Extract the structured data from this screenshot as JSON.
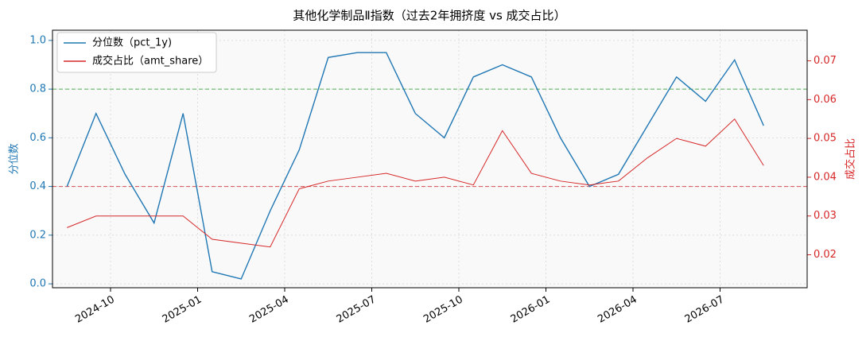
{
  "chart_data": {
    "type": "line",
    "title": "其他化学制品Ⅱ指数（过去2年拥挤度 vs 成交占比）",
    "ylabel": "分位数",
    "y2label": "成交占比",
    "x": [
      "2024-08",
      "2024-09",
      "2024-10",
      "2024-11",
      "2024-12",
      "2025-01",
      "2025-02",
      "2025-03",
      "2025-04",
      "2025-05",
      "2025-06",
      "2025-07",
      "2025-08",
      "2025-09",
      "2025-10",
      "2025-11",
      "2025-12",
      "2026-01",
      "2026-02",
      "2026-03",
      "2026-04",
      "2026-05",
      "2026-06",
      "2026-07",
      "2026-08"
    ],
    "xlim": [
      "2024-08",
      "2026-10"
    ],
    "xticks": [
      "2024-10",
      "2025-01",
      "2025-04",
      "2025-07",
      "2025-10",
      "2026-01",
      "2026-04",
      "2026-07"
    ],
    "ylim": [
      -0.016,
      1.042
    ],
    "yticks": [
      {
        "value": 0,
        "label": "0.0"
      },
      0.2,
      0.4,
      0.6,
      0.8,
      {
        "value": 1,
        "label": "1.0"
      }
    ],
    "y2lim": [
      0.0115,
      0.0779
    ],
    "y2ticks": [
      0.02,
      0.03,
      0.04,
      0.05,
      0.06,
      0.07
    ],
    "grid": true,
    "legend": "upper left",
    "hlines": [
      {
        "value": 0.8,
        "color": "#2ca02c"
      },
      {
        "value": 0.4,
        "color": "#d62728"
      }
    ],
    "series": [
      {
        "name": "分位数（pct_1y)",
        "color": "#1f77b4",
        "axis": "y",
        "values": [
          0.4,
          0.7,
          0.45,
          0.25,
          0.7,
          0.05,
          0.02,
          0.3,
          0.55,
          0.93,
          0.95,
          0.95,
          0.7,
          0.6,
          0.85,
          0.9,
          0.85,
          0.6,
          0.4,
          0.45,
          0.65,
          0.85,
          0.75,
          0.92,
          0.65
        ]
      },
      {
        "name": "成交占比（amt_share）",
        "color": "#d62728",
        "axis": "y2",
        "values": [
          0.027,
          0.03,
          0.03,
          0.03,
          0.03,
          0.024,
          0.023,
          0.022,
          0.037,
          0.039,
          0.04,
          0.041,
          0.039,
          0.04,
          0.038,
          0.052,
          0.041,
          0.039,
          0.038,
          0.039,
          0.045,
          0.05,
          0.048,
          0.055,
          0.043
        ]
      }
    ]
  }
}
